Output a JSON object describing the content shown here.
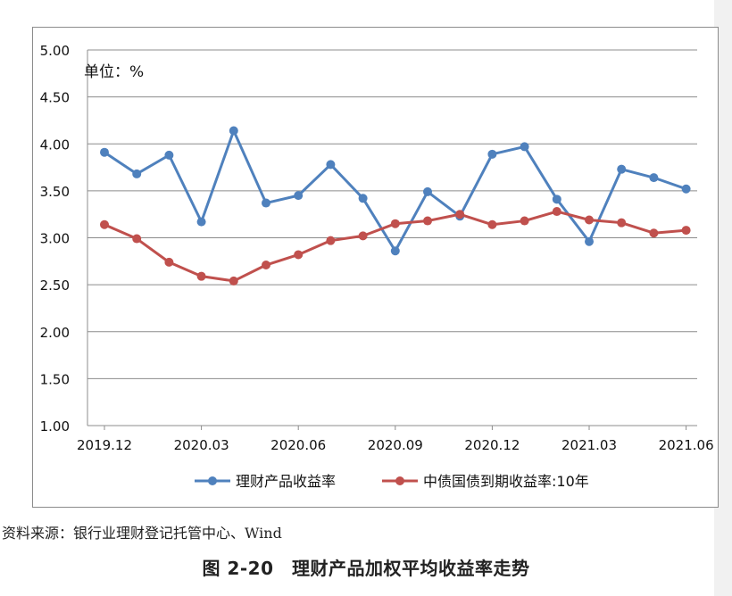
{
  "chart_data": {
    "type": "line",
    "title": "图 2-20　理财产品加权平均收益率走势",
    "unit_label": "单位：%",
    "ylim": [
      1.0,
      5.0
    ],
    "y_ticks": [
      "1.00",
      "1.50",
      "2.00",
      "2.50",
      "3.00",
      "3.50",
      "4.00",
      "4.50",
      "5.00"
    ],
    "x_tick_labels": [
      "2019.12",
      "2020.03",
      "2020.06",
      "2020.09",
      "2020.12",
      "2021.03",
      "2021.06"
    ],
    "grid": true,
    "legend_position": "bottom",
    "series": [
      {
        "name": "理财产品收益率",
        "color": "#4f81bd",
        "values": [
          3.91,
          3.68,
          3.88,
          3.17,
          4.14,
          3.37,
          3.45,
          3.78,
          3.42,
          2.86,
          3.49,
          3.23,
          3.89,
          3.97,
          3.41,
          2.96,
          3.73,
          3.64,
          3.52
        ]
      },
      {
        "name": "中债国债到期收益率:10年",
        "color": "#c0504d",
        "values": [
          3.14,
          2.99,
          2.74,
          2.59,
          2.54,
          2.71,
          2.82,
          2.97,
          3.02,
          3.15,
          3.18,
          3.25,
          3.14,
          3.18,
          3.28,
          3.19,
          3.16,
          3.05,
          3.08
        ]
      }
    ]
  },
  "source_text": "资料来源：银行业理财登记托管中心、Wind",
  "caption_text": "图 2-20　理财产品加权平均收益率走势"
}
